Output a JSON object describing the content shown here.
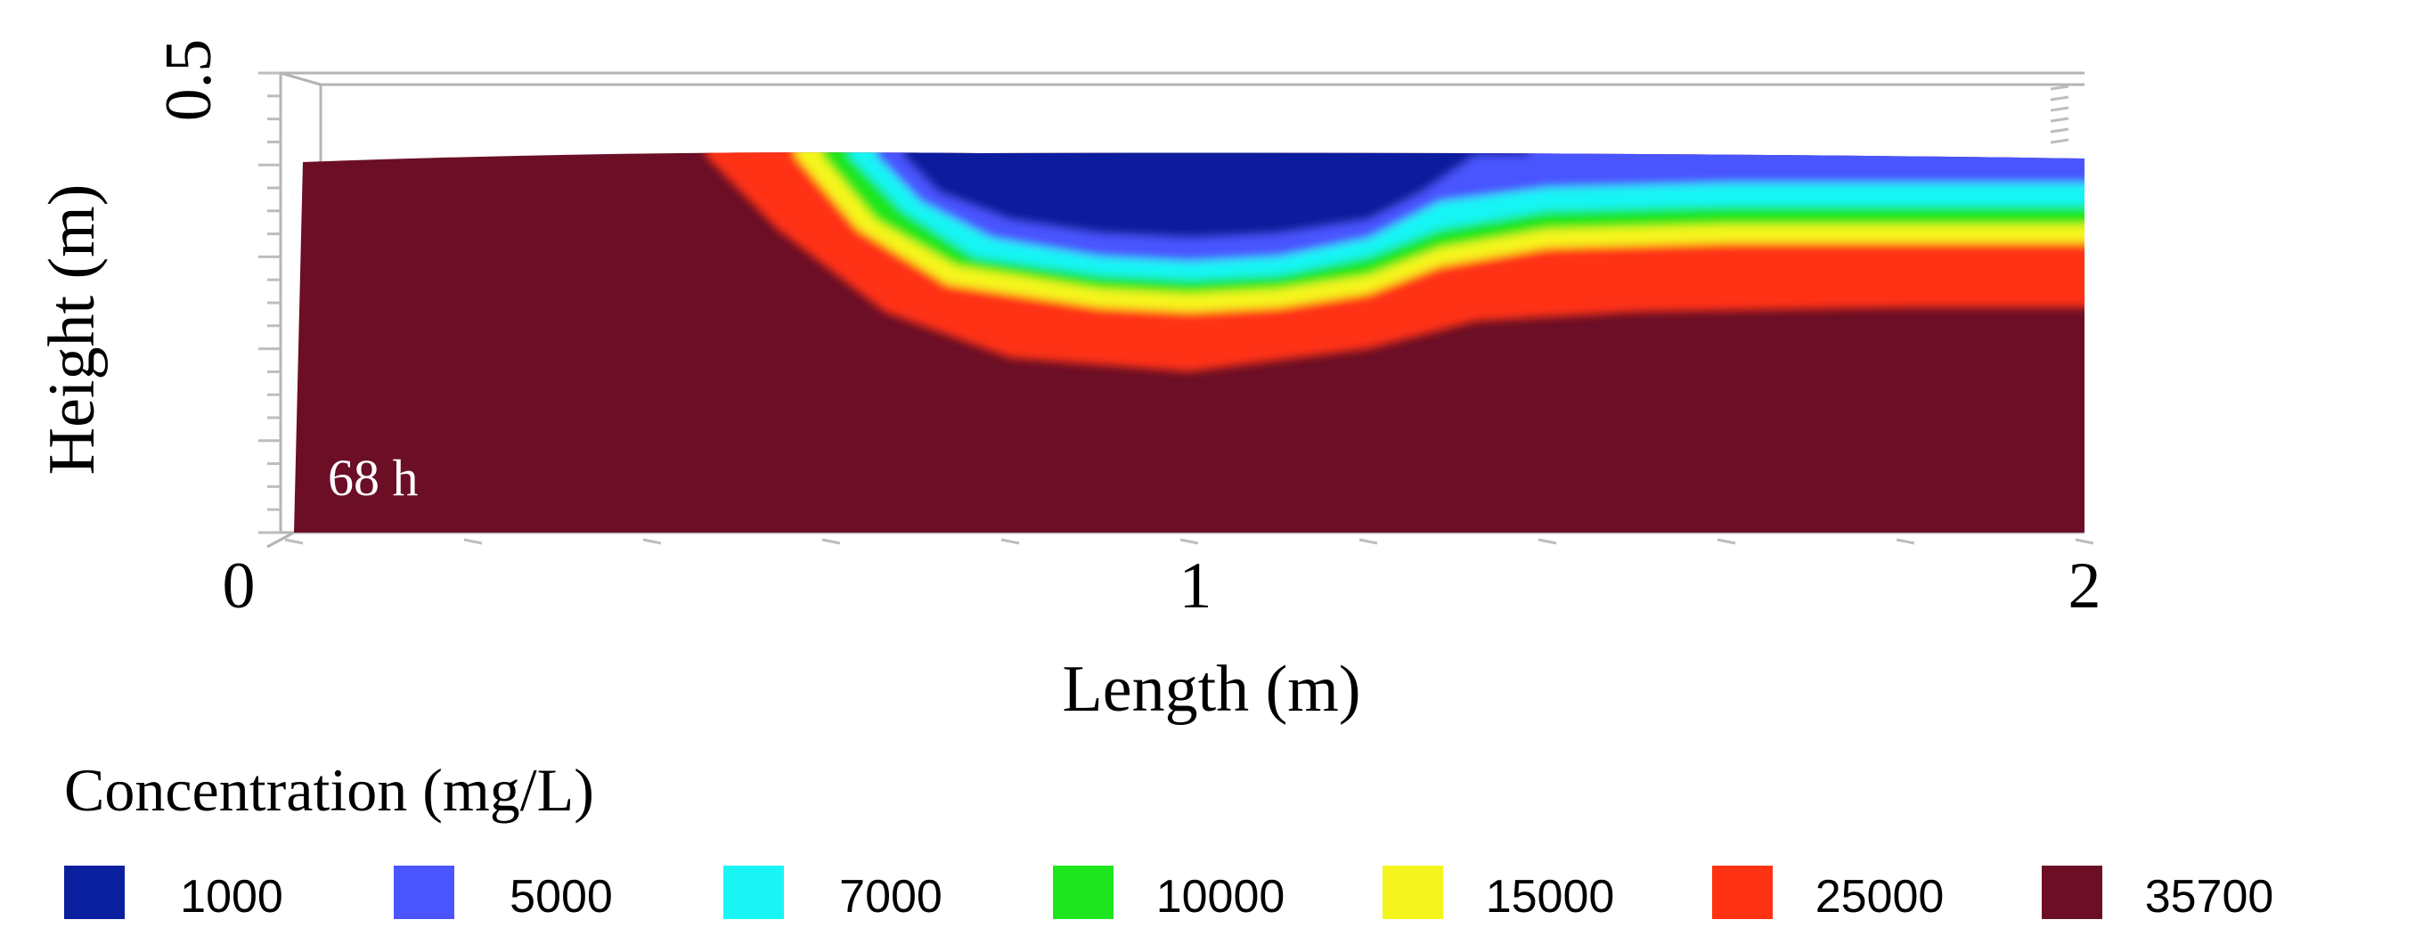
{
  "chart_data": {
    "type": "heatmap",
    "title": "",
    "annotation": "68 h",
    "xlabel": "Length (m)",
    "ylabel": "Height (m)",
    "xlim": [
      0,
      2
    ],
    "ylim": [
      0,
      0.5
    ],
    "x_ticks": [
      "0",
      "1",
      "2"
    ],
    "y_ticks": [
      "0.5"
    ],
    "legend_title": "Concentration (mg/L)",
    "legend_placement": "bottom",
    "legend": [
      {
        "label": "1000",
        "value": 1000,
        "color": "#0a1f9e"
      },
      {
        "label": "5000",
        "value": 5000,
        "color": "#4a55ff"
      },
      {
        "label": "7000",
        "value": 7000,
        "color": "#19f5f5"
      },
      {
        "label": "10000",
        "value": 10000,
        "color": "#1ee61e"
      },
      {
        "label": "15000",
        "value": 15000,
        "color": "#f5f51e"
      },
      {
        "label": "25000",
        "value": 25000,
        "color": "#ff3214"
      },
      {
        "label": "35700",
        "value": 35700,
        "color": "#6b0e26"
      }
    ],
    "contours": [
      {
        "value": 1000,
        "points": [
          [
            0.68,
            0.41
          ],
          [
            0.72,
            0.37
          ],
          [
            0.8,
            0.34
          ],
          [
            0.9,
            0.325
          ],
          [
            1.0,
            0.32
          ],
          [
            1.1,
            0.325
          ],
          [
            1.2,
            0.34
          ],
          [
            1.26,
            0.37
          ],
          [
            1.32,
            0.41
          ]
        ]
      },
      {
        "value": 5000,
        "points": [
          [
            0.65,
            0.41
          ],
          [
            0.7,
            0.36
          ],
          [
            0.78,
            0.32
          ],
          [
            0.9,
            0.3
          ],
          [
            1.0,
            0.295
          ],
          [
            1.1,
            0.3
          ],
          [
            1.2,
            0.32
          ],
          [
            1.28,
            0.36
          ],
          [
            1.4,
            0.375
          ],
          [
            1.6,
            0.38
          ],
          [
            1.8,
            0.38
          ],
          [
            2.0,
            0.38
          ]
        ]
      },
      {
        "value": 7000,
        "points": [
          [
            0.62,
            0.41
          ],
          [
            0.68,
            0.35
          ],
          [
            0.76,
            0.3
          ],
          [
            0.9,
            0.28
          ],
          [
            1.0,
            0.275
          ],
          [
            1.1,
            0.28
          ],
          [
            1.2,
            0.3
          ],
          [
            1.28,
            0.33
          ],
          [
            1.4,
            0.35
          ],
          [
            1.6,
            0.355
          ],
          [
            1.8,
            0.355
          ],
          [
            2.0,
            0.355
          ]
        ]
      },
      {
        "value": 10000,
        "points": [
          [
            0.59,
            0.41
          ],
          [
            0.65,
            0.34
          ],
          [
            0.74,
            0.29
          ],
          [
            0.9,
            0.265
          ],
          [
            1.0,
            0.26
          ],
          [
            1.1,
            0.265
          ],
          [
            1.2,
            0.28
          ],
          [
            1.28,
            0.31
          ],
          [
            1.4,
            0.33
          ],
          [
            1.6,
            0.335
          ],
          [
            1.8,
            0.335
          ],
          [
            2.0,
            0.335
          ]
        ]
      },
      {
        "value": 15000,
        "points": [
          [
            0.56,
            0.41
          ],
          [
            0.63,
            0.33
          ],
          [
            0.73,
            0.27
          ],
          [
            0.9,
            0.245
          ],
          [
            1.0,
            0.24
          ],
          [
            1.1,
            0.245
          ],
          [
            1.2,
            0.26
          ],
          [
            1.28,
            0.29
          ],
          [
            1.4,
            0.31
          ],
          [
            1.6,
            0.315
          ],
          [
            1.8,
            0.315
          ],
          [
            2.0,
            0.315
          ]
        ]
      },
      {
        "value": 25000,
        "points": [
          [
            0.46,
            0.41
          ],
          [
            0.54,
            0.33
          ],
          [
            0.66,
            0.24
          ],
          [
            0.8,
            0.19
          ],
          [
            1.0,
            0.175
          ],
          [
            1.2,
            0.2
          ],
          [
            1.32,
            0.23
          ],
          [
            1.5,
            0.24
          ],
          [
            1.8,
            0.245
          ],
          [
            2.0,
            0.245
          ]
        ]
      }
    ]
  }
}
